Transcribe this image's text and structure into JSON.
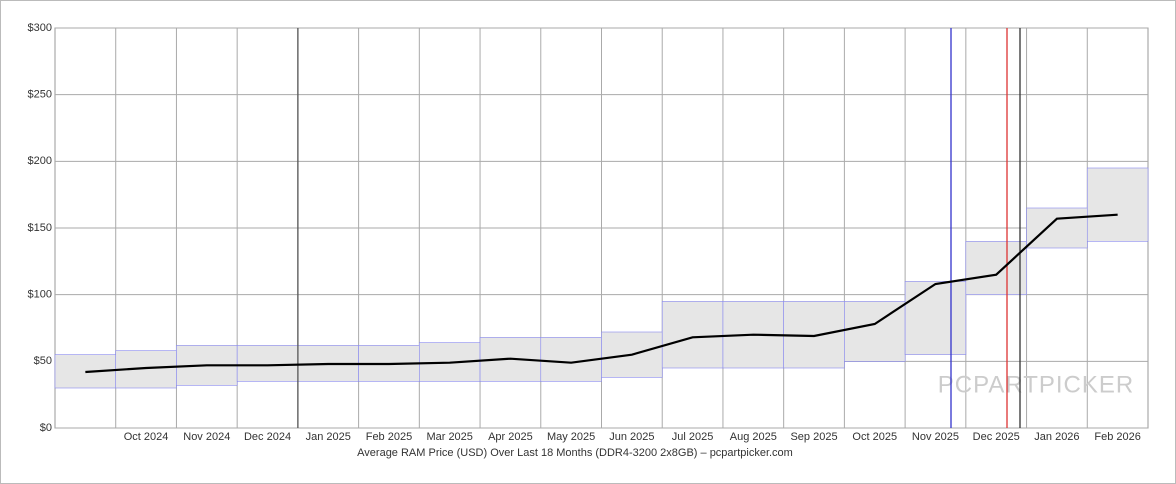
{
  "chart_data": {
    "type": "line",
    "caption": "Average RAM Price (USD) Over Last 18 Months (DDR4-3200 2x8GB) – pcpartpicker.com",
    "watermark": "PCPARTPICKER",
    "categories": [
      null,
      "Oct 2024",
      "Nov 2024",
      "Dec 2024",
      "Jan 2025",
      "Feb 2025",
      "Mar 2025",
      "Apr 2025",
      "May 2025",
      "Jun 2025",
      "Jul 2025",
      "Aug 2025",
      "Sep 2025",
      "Oct 2025",
      "Nov 2025",
      "Dec 2025",
      "Jan 2026",
      "Feb 2026"
    ],
    "series": [
      {
        "color": "#000000",
        "values": [
          42,
          45,
          47,
          47,
          48,
          48,
          49,
          52,
          49,
          55,
          68,
          70,
          69,
          78,
          108,
          115,
          157,
          160
        ]
      }
    ],
    "range": {
      "color": "#e6e6e6",
      "low": [
        30,
        30,
        32,
        35,
        35,
        35,
        35,
        35,
        35,
        38,
        45,
        45,
        45,
        50,
        55,
        100,
        135,
        140
      ],
      "high": [
        55,
        58,
        62,
        62,
        62,
        62,
        64,
        68,
        68,
        72,
        95,
        95,
        95,
        95,
        110,
        140,
        165,
        195
      ]
    },
    "ylim": [
      0,
      300
    ],
    "yticks": [
      {
        "value": 0,
        "label": "$0"
      },
      {
        "value": 50,
        "label": "$50"
      },
      {
        "value": 100,
        "label": "$100"
      },
      {
        "value": 150,
        "label": "$150"
      },
      {
        "value": 200,
        "label": "$200"
      },
      {
        "value": 250,
        "label": "$250"
      },
      {
        "value": 300,
        "label": "$300"
      }
    ],
    "grid": true
  }
}
